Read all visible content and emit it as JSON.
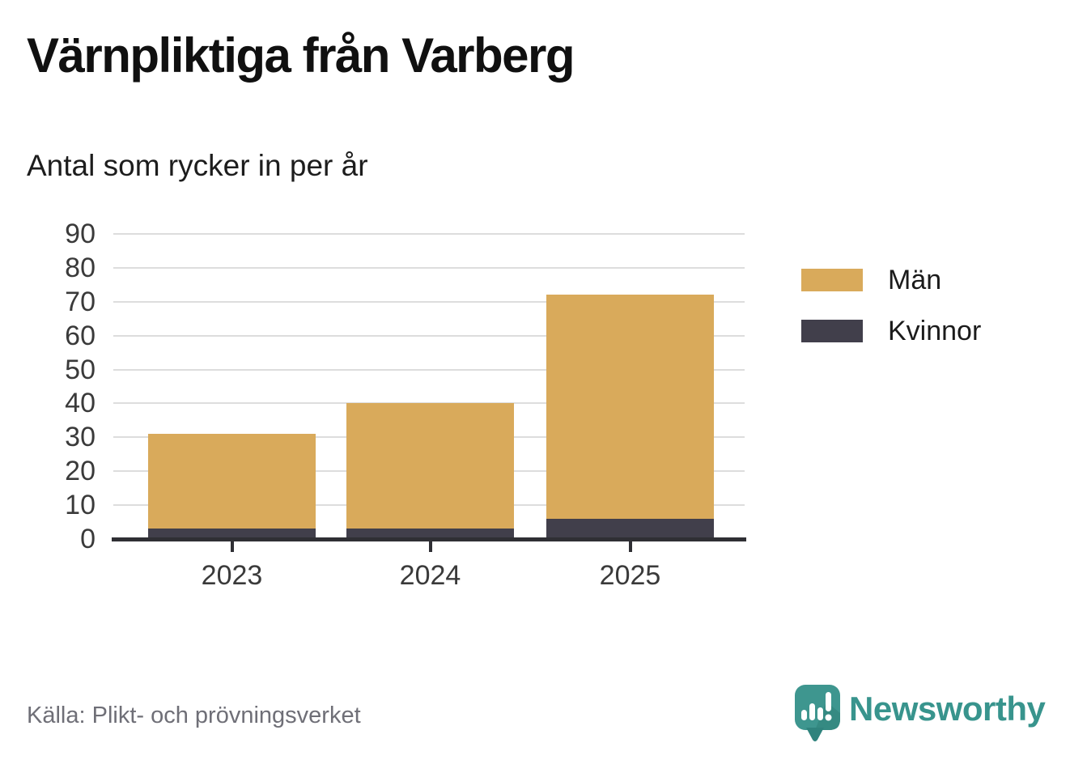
{
  "header": {
    "title": "Värnpliktiga från Varberg",
    "subtitle": "Antal som rycker in per år"
  },
  "chart_data": {
    "type": "bar",
    "stacked": true,
    "title": "Värnpliktiga från Varberg",
    "subtitle": "Antal som rycker in per år",
    "categories": [
      "2023",
      "2024",
      "2025"
    ],
    "series": [
      {
        "name": "Kvinnor",
        "color": "#413f4b",
        "values": [
          3,
          3,
          6
        ]
      },
      {
        "name": "Män",
        "color": "#d9aa5b",
        "values": [
          28,
          37,
          66
        ]
      }
    ],
    "bar_totals": [
      31,
      40,
      72
    ],
    "legend_order": [
      "Män",
      "Kvinnor"
    ],
    "legend_position": "right",
    "xlabel": "",
    "ylabel": "",
    "ylim": [
      0,
      90
    ],
    "yticks": [
      0,
      10,
      20,
      30,
      40,
      50,
      60,
      70,
      80,
      90
    ],
    "grid": true
  },
  "footer": {
    "source": "Källa: Plikt- och prövningsverket",
    "brand_name": "Newsworthy"
  },
  "colors": {
    "men_bar": "#d9aa5b",
    "women_bar": "#413f4b",
    "brand_teal": "#38948d",
    "brand_teal_dark": "#2f837d",
    "gridline": "#dddddd",
    "axis": "#2f2f34",
    "source_text": "#6f6f77"
  },
  "icons": {
    "brand": "newsworthy-speech-bubble-bars-icon"
  }
}
